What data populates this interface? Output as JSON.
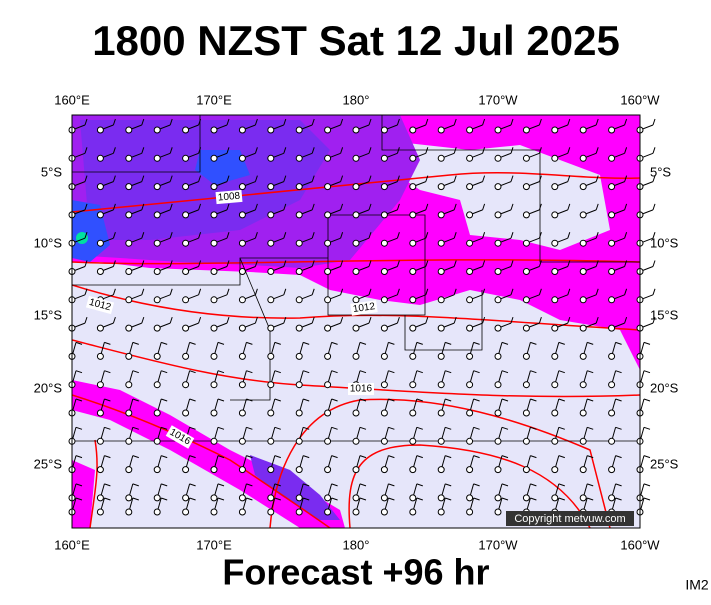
{
  "header": {
    "title": "1800 NZST Sat 12 Jul 2025"
  },
  "map": {
    "longitude_labels": [
      "160°E",
      "170°E",
      "180°",
      "170°W",
      "160°W"
    ],
    "latitude_labels": [
      "5°S",
      "10°S",
      "15°S",
      "20°S",
      "25°S"
    ],
    "isobar_labels": [
      "1008",
      "1012",
      "1012",
      "1016",
      "1016"
    ],
    "copyright": "Copyright metvuw.com"
  },
  "footer": {
    "forecast": "Forecast +96 hr",
    "code": "IM2"
  }
}
